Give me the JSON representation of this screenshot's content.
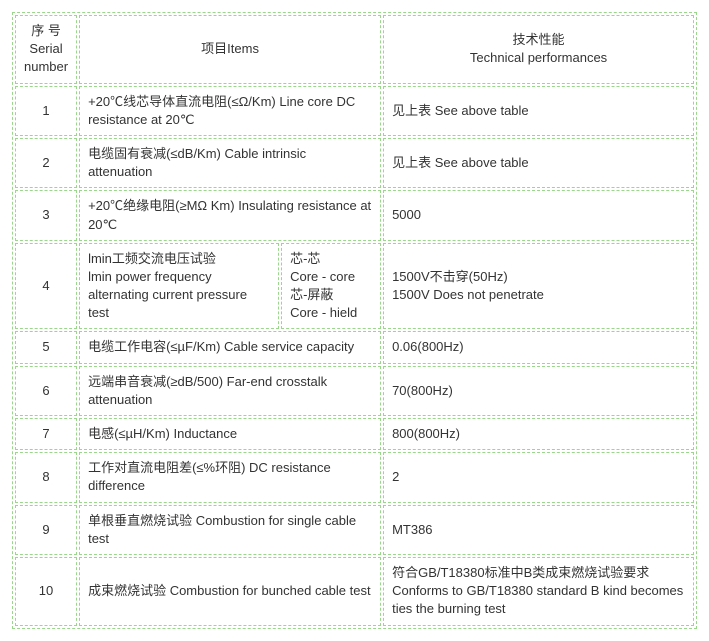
{
  "table": {
    "border_color": "#9ad68c",
    "border_style": "dashed",
    "text_color": "#333333",
    "font_size": 13,
    "headers": {
      "serial": "序 号\nSerial number",
      "items": "项目Items",
      "tech": "技术性能\nTechnical performances"
    },
    "rows": [
      {
        "serial": "1",
        "items": "+20℃线芯导体直流电阻(≤Ω/Km) Line core DC resistance at 20℃",
        "tech": "见上表 See above table"
      },
      {
        "serial": "2",
        "items": "电缆固有衰减(≤dB/Km) Cable intrinsic attenuation",
        "tech": "见上表 See above table"
      },
      {
        "serial": "3",
        "items": "+20℃绝缘电阻(≥MΩ Km) Insulating resistance at 20℃",
        "tech": "5000"
      },
      {
        "serial": "4",
        "items": "lmin工频交流电压试验\nlmin power frequency alternating current pressure test",
        "sub": "芯-芯\nCore - core\n芯-屏蔽\nCore - hield",
        "tech": "1500V不击穿(50Hz)\n1500V Does not penetrate"
      },
      {
        "serial": "5",
        "items": "电缆工作电容(≤µF/Km) Cable service capacity",
        "tech": "0.06(800Hz)"
      },
      {
        "serial": "6",
        "items": "远端串音衰减(≥dB/500) Far-end crosstalk attenuation",
        "tech": "70(800Hz)"
      },
      {
        "serial": "7",
        "items": "电感(≤µH/Km) Inductance",
        "tech": "800(800Hz)"
      },
      {
        "serial": "8",
        "items": "工作对直流电阻差(≤%环阻) DC resistance difference",
        "tech": "2"
      },
      {
        "serial": "9",
        "items": "单根垂直燃烧试验 Combustion for single cable test",
        "tech": "MT386"
      },
      {
        "serial": "10",
        "items": "成束燃烧试验 Combustion for bunched cable test",
        "tech": "符合GB/T18380标准中B类成束燃烧试验要求 Conforms to GB/T18380 standard B kind becomes ties the burning test"
      }
    ]
  }
}
